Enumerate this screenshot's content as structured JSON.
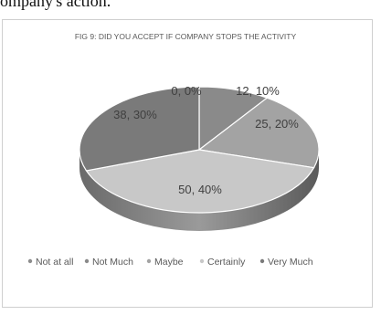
{
  "caption_fragment": "ompany's action.",
  "chart_data": {
    "type": "pie",
    "title": "FIG 9: DID YOU ACCEPT IF COMPANY STOPS THE ACTIVITY",
    "categories": [
      "Not at all",
      "Not Much",
      "Maybe",
      "Certainly",
      "Very Much"
    ],
    "values": [
      0,
      12,
      25,
      50,
      38
    ],
    "percentages": [
      0,
      10,
      20,
      40,
      30
    ],
    "data_labels": [
      "0, 0%",
      "12, 10%",
      "25, 20%",
      "50, 40%",
      "38, 30%"
    ],
    "colors": [
      "#8c8c8c",
      "#8a8a8a",
      "#a3a3a3",
      "#c8c8c8",
      "#7a7a7a"
    ],
    "legend_position": "bottom",
    "style": "3d"
  }
}
